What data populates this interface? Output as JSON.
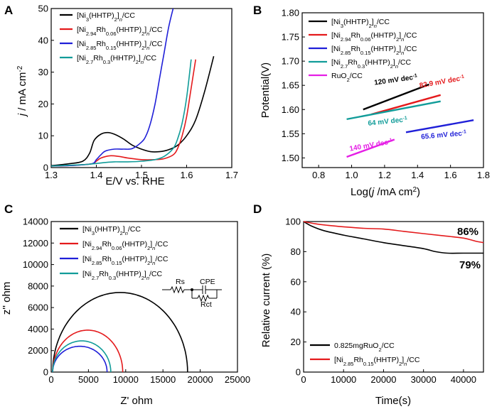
{
  "chart_data": [
    {
      "panel": "A",
      "type": "line",
      "xlabel": "E/V vs. RHE",
      "ylabel_parts": [
        "j",
        " / mA cm",
        "-2"
      ],
      "xlim": [
        1.3,
        1.7
      ],
      "ylim": [
        0,
        50
      ],
      "xticks": [
        "1.3",
        "1.4",
        "1.5",
        "1.6",
        "1.7"
      ],
      "yticks": [
        "0",
        "10",
        "20",
        "30",
        "40",
        "50"
      ],
      "legend": [
        {
          "color": "#000000",
          "parts": [
            "[Ni",
            "3",
            "(HHTP)",
            "2",
            "]",
            "n",
            "/CC"
          ]
        },
        {
          "color": "#e41a1c",
          "parts": [
            "[Ni",
            "2.94",
            "Rh",
            "0.06",
            "(HHTP)",
            "2",
            "]",
            "n",
            "/CC"
          ]
        },
        {
          "color": "#1f1fd8",
          "parts": [
            "[Ni",
            "2.85",
            "Rh",
            "0.15",
            "(HHTP)",
            "2",
            "]",
            "n",
            "/CC"
          ]
        },
        {
          "color": "#119c99",
          "parts": [
            "[Ni",
            "2.7",
            "Rh",
            "0.3",
            "(HHTP)",
            "2",
            "]",
            "n",
            "/CC"
          ]
        }
      ],
      "series": [
        {
          "name": "Ni3",
          "color": "#000000",
          "x": [
            1.3,
            1.34,
            1.37,
            1.385,
            1.395,
            1.41,
            1.425,
            1.44,
            1.46,
            1.48,
            1.5,
            1.52,
            1.54,
            1.56,
            1.58,
            1.6,
            1.62,
            1.64,
            1.66
          ],
          "y": [
            0.6,
            1.2,
            2.0,
            4.5,
            8.5,
            10.5,
            11.0,
            10.5,
            9.0,
            7.0,
            5.8,
            5.0,
            5.0,
            5.6,
            7.0,
            10.0,
            15.0,
            24.0,
            35.0
          ]
        },
        {
          "name": "Rh0.06",
          "color": "#e41a1c",
          "x": [
            1.3,
            1.35,
            1.39,
            1.4,
            1.41,
            1.43,
            1.45,
            1.47,
            1.5,
            1.53,
            1.55,
            1.57,
            1.58,
            1.59,
            1.6,
            1.61,
            1.62
          ],
          "y": [
            0.5,
            0.7,
            1.2,
            2.0,
            3.0,
            3.7,
            3.5,
            3.0,
            2.5,
            2.5,
            2.8,
            4.0,
            6.0,
            10.0,
            16.0,
            25.0,
            34.0
          ]
        },
        {
          "name": "Rh0.15",
          "color": "#1f1fd8",
          "x": [
            1.3,
            1.35,
            1.39,
            1.4,
            1.41,
            1.42,
            1.44,
            1.46,
            1.48,
            1.5,
            1.51,
            1.52,
            1.53,
            1.54,
            1.55,
            1.56,
            1.57
          ],
          "y": [
            0.5,
            0.7,
            1.2,
            2.5,
            4.0,
            5.2,
            5.8,
            5.8,
            6.0,
            8.0,
            10.0,
            14.0,
            20.0,
            28.0,
            36.0,
            44.0,
            50.0
          ]
        },
        {
          "name": "Rh0.3",
          "color": "#119c99",
          "x": [
            1.3,
            1.35,
            1.38,
            1.4,
            1.42,
            1.44,
            1.47,
            1.5,
            1.53,
            1.55,
            1.57,
            1.58,
            1.59,
            1.6,
            1.61
          ],
          "y": [
            0.5,
            0.8,
            1.0,
            1.3,
            1.6,
            1.8,
            1.8,
            2.0,
            2.5,
            3.5,
            6.0,
            9.0,
            14.0,
            22.0,
            34.0
          ]
        }
      ]
    },
    {
      "panel": "B",
      "type": "line",
      "xlabel_parts": [
        "Log(",
        "j",
        " /mA cm",
        "2",
        ")"
      ],
      "ylabel": "Potential(V)",
      "xlim": [
        0.7,
        1.8
      ],
      "ylim": [
        1.48,
        1.8
      ],
      "xticks": [
        "0.8",
        "1.0",
        "1.2",
        "1.4",
        "1.6",
        "1.8"
      ],
      "yticks": [
        "1.50",
        "1.55",
        "1.60",
        "1.65",
        "1.70",
        "1.75",
        "1.80"
      ],
      "legend": [
        {
          "color": "#000000",
          "parts": [
            "[Ni",
            "3",
            "(HHTP)",
            "2",
            "]",
            "n",
            "/CC"
          ]
        },
        {
          "color": "#e41a1c",
          "parts": [
            "[Ni",
            "2.94",
            "Rh",
            "0.06",
            "(HHTP)",
            "2",
            "]",
            "n",
            "/CC"
          ]
        },
        {
          "color": "#1f1fd8",
          "parts": [
            "[Ni",
            "2.85",
            "Rh",
            "0.15",
            "(HHTP)",
            "2",
            "]",
            "n",
            "/CC"
          ]
        },
        {
          "color": "#119c99",
          "parts": [
            "[Ni",
            "2.7",
            "Rh",
            "0.3",
            "(HHTP)",
            "2",
            "]",
            "n",
            "/CC"
          ]
        },
        {
          "color": "#e51ee5",
          "parts": [
            "RuO",
            "2",
            "/CC"
          ]
        }
      ],
      "series": [
        {
          "name": "Ni3",
          "color": "#000000",
          "x": [
            1.07,
            1.47
          ],
          "y": [
            1.6,
            1.652
          ],
          "label": "120 mV dec",
          "label_sup": "-1"
        },
        {
          "name": "Rh0.06",
          "color": "#e41a1c",
          "x": [
            1.12,
            1.54
          ],
          "y": [
            1.59,
            1.63
          ],
          "label": "82.9 mV dec",
          "label_sup": "-1"
        },
        {
          "name": "Rh0.15",
          "color": "#1f1fd8",
          "x": [
            1.33,
            1.74
          ],
          "y": [
            1.553,
            1.578
          ],
          "label": "65.6 mV dec",
          "label_sup": "-1"
        },
        {
          "name": "Rh0.3",
          "color": "#119c99",
          "x": [
            0.97,
            1.54
          ],
          "y": [
            1.58,
            1.617
          ],
          "label": "64 mV dec",
          "label_sup": "-1"
        },
        {
          "name": "RuO2",
          "color": "#e51ee5",
          "x": [
            0.97,
            1.26
          ],
          "y": [
            1.502,
            1.538
          ],
          "label": "140 mV dec",
          "label_sup": "-1"
        }
      ]
    },
    {
      "panel": "C",
      "type": "line",
      "xlabel": "Z' ohm",
      "ylabel": "z'' ohm",
      "xlim": [
        0,
        25000
      ],
      "ylim": [
        0,
        14000
      ],
      "xticks": [
        "0",
        "5000",
        "10000",
        "15000",
        "20000",
        "25000"
      ],
      "yticks": [
        "0",
        "2000",
        "4000",
        "6000",
        "8000",
        "10000",
        "12000",
        "14000"
      ],
      "legend": [
        {
          "color": "#000000",
          "parts": [
            "[Ni",
            "3",
            "(HHTP)",
            "2",
            "]",
            "n",
            "/CC"
          ]
        },
        {
          "color": "#e41a1c",
          "parts": [
            "[Ni",
            "2.94",
            "Rh",
            "0.06",
            "(HHTP)",
            "2",
            "]",
            "n",
            "/CC"
          ]
        },
        {
          "color": "#1f1fd8",
          "parts": [
            "[Ni",
            "2.85",
            "Rh",
            "0.15",
            "(HHTP)",
            "2",
            "]",
            "n",
            "/CC"
          ]
        },
        {
          "color": "#119c99",
          "parts": [
            "[Ni",
            "2.7",
            "Rh",
            "0.3",
            "(HHTP)",
            "2",
            "]",
            "n",
            "/CC"
          ]
        }
      ],
      "circuit_labels": {
        "rs": "Rs",
        "cpe": "CPE",
        "rct": "Rct"
      },
      "series": [
        {
          "name": "Ni3",
          "color": "#000000",
          "start": 200,
          "end": 18300,
          "height": 7400
        },
        {
          "name": "Rh0.06",
          "color": "#e41a1c",
          "start": 200,
          "end": 9600,
          "height": 3900
        },
        {
          "name": "Rh0.15",
          "color": "#1f1fd8",
          "start": 200,
          "end": 7500,
          "height": 2400
        },
        {
          "name": "Rh0.3",
          "color": "#119c99",
          "start": 200,
          "end": 8000,
          "height": 2900
        }
      ]
    },
    {
      "panel": "D",
      "type": "line",
      "xlabel": "Time(s)",
      "ylabel": "Relative current (%)",
      "xlim": [
        0,
        45000
      ],
      "ylim": [
        0,
        100
      ],
      "xticks": [
        "0",
        "10000",
        "20000",
        "30000",
        "40000"
      ],
      "yticks": [
        "0",
        "20",
        "40",
        "60",
        "80",
        "100"
      ],
      "legend": [
        {
          "color": "#000000",
          "parts": [
            "0.825mgRuO",
            "2",
            "/CC"
          ]
        },
        {
          "color": "#e41a1c",
          "parts": [
            "[Ni",
            "2.85",
            "Rh",
            "0.15",
            "(HHTP)",
            "2",
            "]",
            "n",
            "/CC"
          ]
        }
      ],
      "annotations": [
        {
          "text": "86%",
          "color": "#e41a1c"
        },
        {
          "text": "79%",
          "color": "#000000"
        }
      ],
      "series": [
        {
          "name": "RuO2",
          "color": "#000000",
          "x": [
            0,
            2000,
            5000,
            10000,
            15000,
            20000,
            25000,
            30000,
            33000,
            36000,
            40000,
            45000
          ],
          "y": [
            100,
            97,
            94,
            91,
            88.5,
            86,
            84,
            82,
            80,
            79,
            79,
            79
          ]
        },
        {
          "name": "Rh0.15",
          "color": "#e41a1c",
          "x": [
            0,
            3000,
            6000,
            10000,
            15000,
            20000,
            25000,
            30000,
            35000,
            40000,
            43000,
            45000
          ],
          "y": [
            100,
            98.5,
            97.5,
            96.5,
            95.5,
            95,
            93.5,
            92,
            90.5,
            89,
            87,
            86
          ]
        }
      ]
    }
  ]
}
